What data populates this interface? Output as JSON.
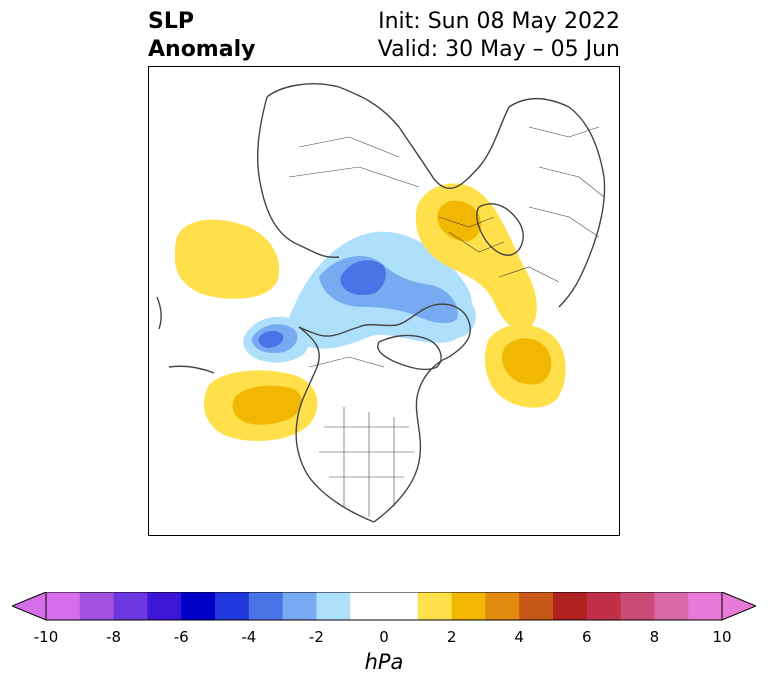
{
  "title": {
    "left_line1": "SLP",
    "left_line2": "Anomaly",
    "right_line1": "Init: Sun 08 May 2022",
    "right_line2": "Valid: 30 May – 05 Jun"
  },
  "colorbar": {
    "label": "hPa",
    "ticks": [
      "-10",
      "-8",
      "-6",
      "-4",
      "-2",
      "0",
      "2",
      "4",
      "6",
      "8",
      "10"
    ],
    "colors": [
      "#d76ee9",
      "#a052df",
      "#6d37df",
      "#3c16d6",
      "#0000c8",
      "#2038dc",
      "#4a74e6",
      "#78aaf2",
      "#aee0fb",
      "#ffffff",
      "#ffffff",
      "#ffe04a",
      "#f2b700",
      "#e08b10",
      "#c85818",
      "#b02222",
      "#c03048",
      "#cc4c78",
      "#d868a8",
      "#e87ad8"
    ],
    "extend_low_color": "#d76ee9",
    "extend_high_color": "#e87ad8"
  },
  "map": {
    "projection": "polar stereographic (Northern Hemisphere)",
    "positive_anomaly_light": "#ffe04a",
    "positive_anomaly_mid": "#f2b700",
    "negative_anomaly_light": "#aee0fb",
    "negative_anomaly_mid": "#78aaf2",
    "negative_anomaly_strong": "#4a74e6",
    "coastline_color": "#444444"
  }
}
